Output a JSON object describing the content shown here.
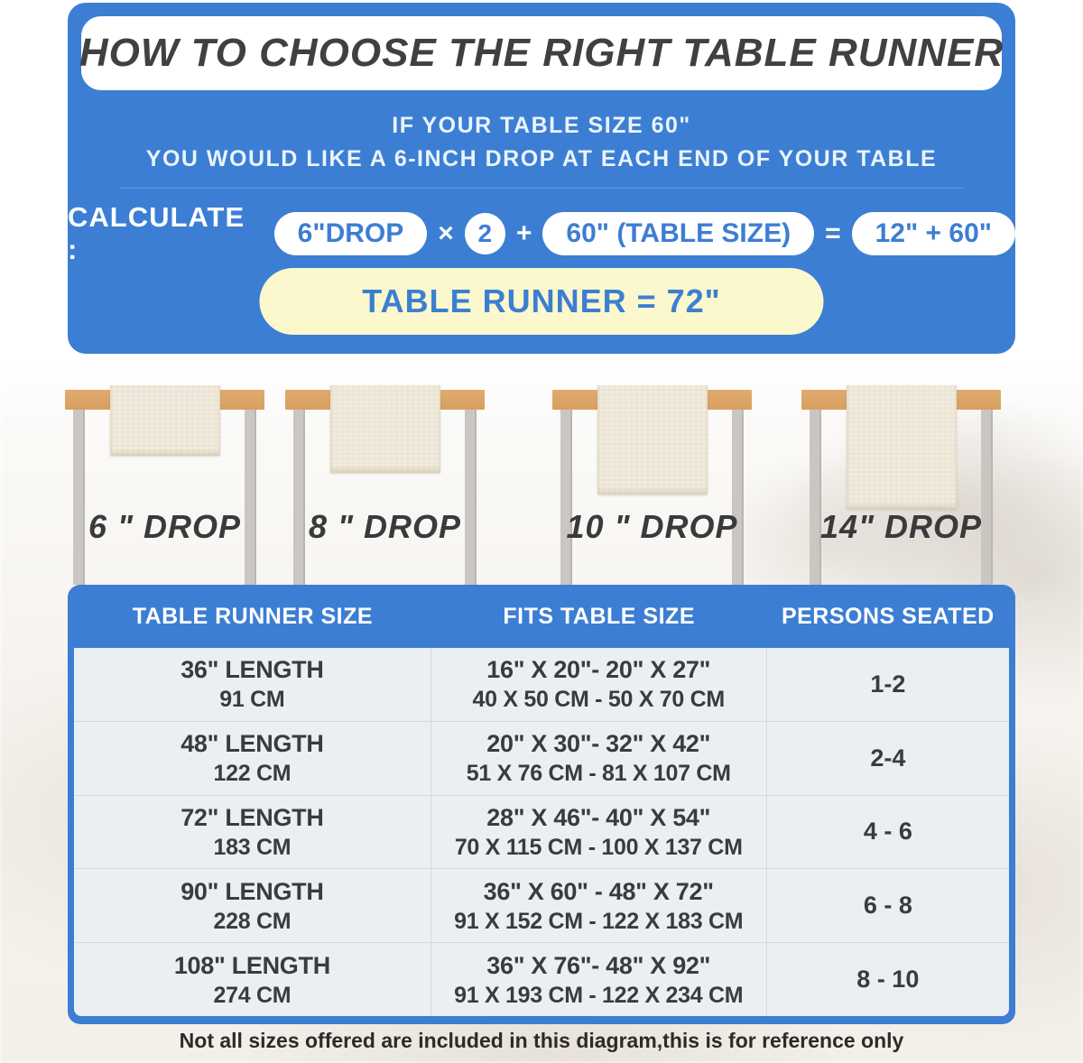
{
  "colors": {
    "panel_blue": "#3c7ed3",
    "accent_yellow": "#faf8cc",
    "wood_tan": "#dda76a",
    "runner_cream": "#f1ecdf",
    "text_dark": "#3b3b3b"
  },
  "header": {
    "title": "HOW TO CHOOSE THE RIGHT TABLE RUNNER"
  },
  "intro": {
    "line1": "IF YOUR TABLE SIZE 60\"",
    "line2": "YOU WOULD LIKE A 6-INCH DROP AT EACH END OF YOUR TABLE"
  },
  "formula": {
    "label": "CALCULATE :",
    "drop_pill": "6\"DROP",
    "times": "×",
    "multiplier": "2",
    "plus": "+",
    "size_pill": "60\" (TABLE SIZE)",
    "equals": "=",
    "result_pill": "12\" + 60\"",
    "final": "TABLE RUNNER = 72\""
  },
  "drops": [
    {
      "label": "6 \" DROP"
    },
    {
      "label": "8 \" DROP"
    },
    {
      "label": "10 \" DROP"
    },
    {
      "label": "14\" DROP"
    }
  ],
  "table": {
    "headers": [
      "TABLE RUNNER SIZE",
      "FITS TABLE SIZE",
      "PERSONS SEATED"
    ],
    "rows": [
      {
        "size_in": "36\" LENGTH",
        "size_cm": "91 CM",
        "fits_in": "16\" X 20\"- 20\" X 27\"",
        "fits_cm": "40 X 50 CM - 50 X 70 CM",
        "persons": "1-2"
      },
      {
        "size_in": "48\" LENGTH",
        "size_cm": "122 CM",
        "fits_in": "20\" X 30\"- 32\" X 42\"",
        "fits_cm": "51 X 76 CM - 81 X 107 CM",
        "persons": "2-4"
      },
      {
        "size_in": "72\" LENGTH",
        "size_cm": "183 CM",
        "fits_in": "28\" X 46\"- 40\" X 54\"",
        "fits_cm": "70 X 115 CM - 100 X 137 CM",
        "persons": "4 - 6"
      },
      {
        "size_in": "90\" LENGTH",
        "size_cm": "228 CM",
        "fits_in": "36\" X 60\" - 48\" X 72\"",
        "fits_cm": "91 X 152 CM - 122 X 183 CM",
        "persons": "6 - 8"
      },
      {
        "size_in": "108\" LENGTH",
        "size_cm": "274 CM",
        "fits_in": "36\" X 76\"- 48\" X 92\"",
        "fits_cm": "91 X 193 CM - 122 X 234 CM",
        "persons": "8 - 10"
      }
    ]
  },
  "footer": {
    "note": "Not all sizes offered are included in this diagram,this is for reference only"
  }
}
